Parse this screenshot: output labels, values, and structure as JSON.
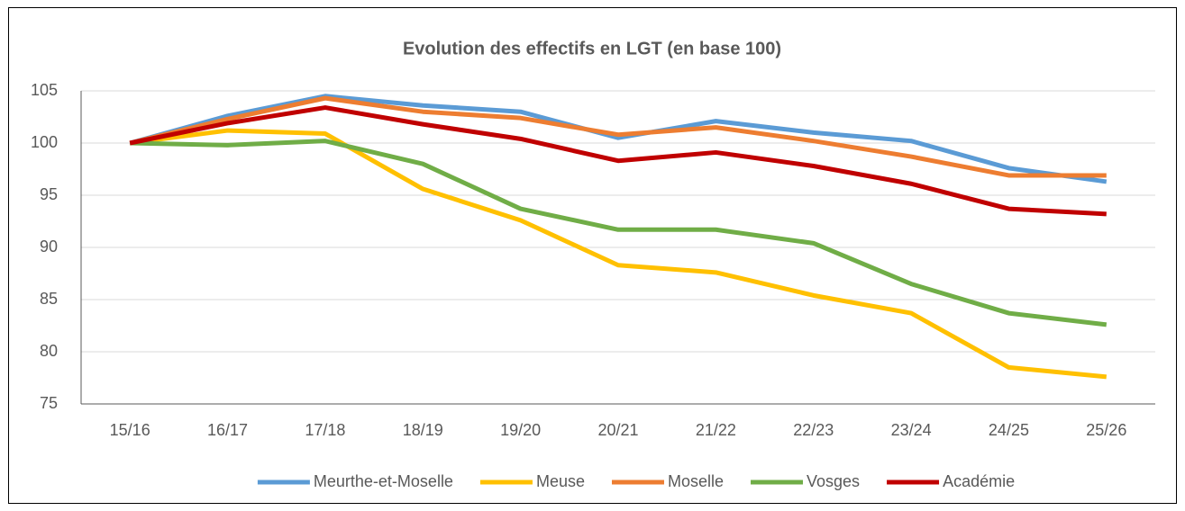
{
  "chart_data": {
    "type": "line",
    "title": "Evolution  des effectifs en LGT (en base 100)",
    "categories": [
      "15/16",
      "16/17",
      "17/18",
      "18/19",
      "19/20",
      "20/21",
      "21/22",
      "22/23",
      "23/24",
      "24/25",
      "25/26"
    ],
    "series": [
      {
        "name": "Meurthe-et-Moselle",
        "color": "#5b9bd5",
        "values": [
          100,
          102.6,
          104.5,
          103.6,
          103.0,
          100.5,
          102.1,
          101.0,
          100.2,
          97.6,
          96.3
        ]
      },
      {
        "name": "Meuse",
        "color": "#ffc000",
        "values": [
          100,
          101.2,
          100.9,
          95.6,
          92.6,
          88.3,
          87.6,
          85.4,
          83.7,
          78.5,
          77.6
        ]
      },
      {
        "name": "Moselle",
        "color": "#ed7d31",
        "values": [
          100,
          102.3,
          104.3,
          103.0,
          102.4,
          100.8,
          101.5,
          100.2,
          98.7,
          96.9,
          96.9
        ]
      },
      {
        "name": "Vosges",
        "color": "#70ad47",
        "values": [
          100,
          99.8,
          100.2,
          98.0,
          93.7,
          91.7,
          91.7,
          90.4,
          86.5,
          83.7,
          82.6
        ]
      },
      {
        "name": "Académie",
        "color": "#c00000",
        "values": [
          100,
          101.9,
          103.4,
          101.8,
          100.4,
          98.3,
          99.1,
          97.8,
          96.1,
          93.7,
          93.2
        ]
      }
    ],
    "ylim": [
      75,
      105
    ],
    "yticks": [
      75,
      80,
      85,
      90,
      95,
      100,
      105
    ],
    "grid": true,
    "legend": "bottom"
  }
}
